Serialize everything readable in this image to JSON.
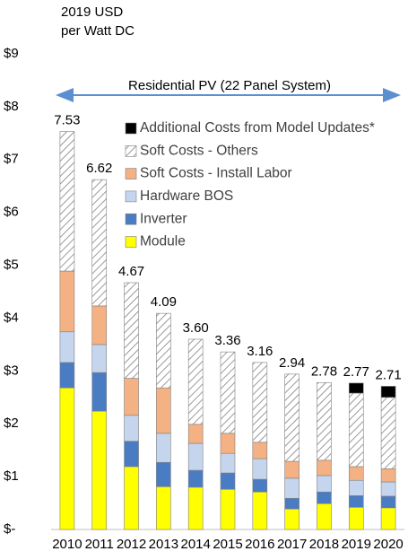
{
  "chart_data": {
    "type": "stacked-bar",
    "y_label": [
      "2019 USD",
      "per Watt DC"
    ],
    "annotation": "Residential PV (22 Panel System)",
    "categories": [
      "2010",
      "2011",
      "2012",
      "2013",
      "2014",
      "2015",
      "2016",
      "2017",
      "2018",
      "2019",
      "2020"
    ],
    "series": [
      {
        "name": "Module",
        "color": "#ffff00",
        "values": [
          2.68,
          2.24,
          1.19,
          0.81,
          0.8,
          0.76,
          0.71,
          0.39,
          0.49,
          0.42,
          0.41
        ]
      },
      {
        "name": "Inverter",
        "color": "#4a7cc4",
        "values": [
          0.48,
          0.73,
          0.48,
          0.46,
          0.32,
          0.31,
          0.24,
          0.2,
          0.22,
          0.22,
          0.22
        ]
      },
      {
        "name": "Hardware BOS",
        "color": "#c5d5ee",
        "values": [
          0.58,
          0.53,
          0.49,
          0.55,
          0.51,
          0.37,
          0.39,
          0.38,
          0.31,
          0.29,
          0.27
        ]
      },
      {
        "name": "Soft Costs - Install Labor",
        "color": "#f4b183",
        "values": [
          1.15,
          0.73,
          0.7,
          0.86,
          0.36,
          0.38,
          0.31,
          0.32,
          0.29,
          0.26,
          0.25
        ]
      },
      {
        "name": "Soft Costs - Others",
        "color": "hatch",
        "values": [
          2.64,
          2.39,
          1.81,
          1.41,
          1.61,
          1.54,
          1.51,
          1.65,
          1.47,
          1.39,
          1.35
        ]
      },
      {
        "name": "Additional Costs from Model Updates*",
        "color": "#000000",
        "values": [
          0,
          0,
          0,
          0,
          0,
          0,
          0,
          0,
          0,
          0.19,
          0.21
        ]
      }
    ],
    "totals": [
      7.53,
      6.62,
      4.67,
      4.09,
      3.6,
      3.36,
      3.16,
      2.94,
      2.78,
      2.77,
      2.71
    ],
    "total_labels": [
      "7.53",
      "6.62",
      "4.67",
      "4.09",
      "3.60",
      "3.36",
      "3.16",
      "2.94",
      "2.78",
      "2.77",
      "2.71"
    ],
    "ylim": [
      0,
      9
    ],
    "yticks": [
      {
        "value": 0,
        "label": "$-"
      },
      {
        "value": 1,
        "label": "$1"
      },
      {
        "value": 2,
        "label": "$2"
      },
      {
        "value": 3,
        "label": "$3"
      },
      {
        "value": 4,
        "label": "$4"
      },
      {
        "value": 5,
        "label": "$5"
      },
      {
        "value": 6,
        "label": "$6"
      },
      {
        "value": 7,
        "label": "$7"
      },
      {
        "value": 8,
        "label": "$8"
      },
      {
        "value": 9,
        "label": "$9"
      }
    ]
  }
}
